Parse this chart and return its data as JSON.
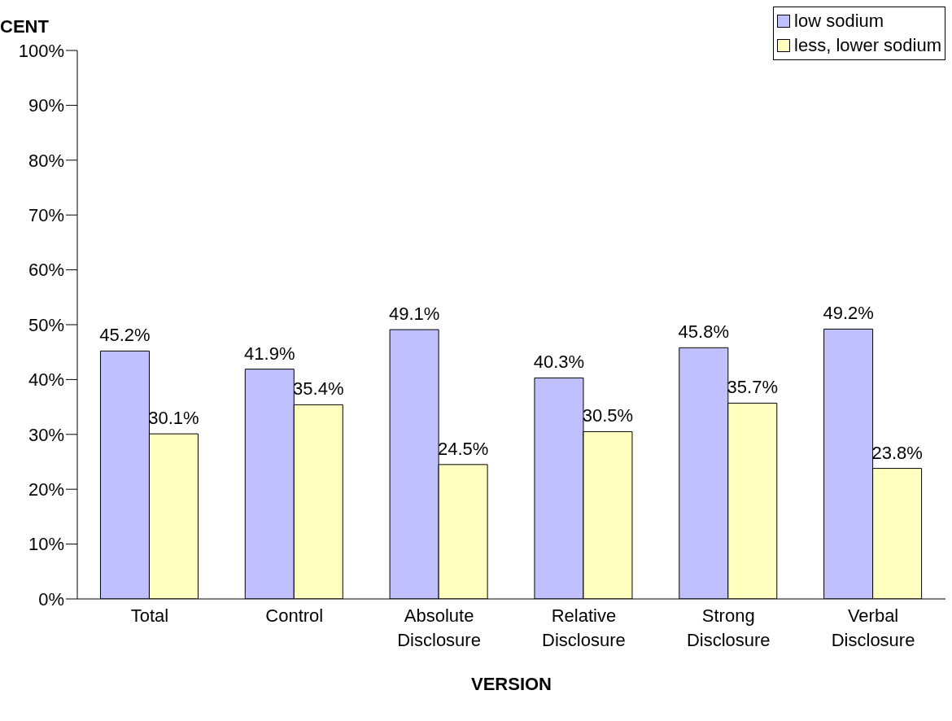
{
  "chart_data": {
    "type": "bar",
    "xlabel": "VERSION",
    "ylabel": "CENT",
    "categories": [
      "Total",
      "Control",
      "Absolute Disclosure",
      "Relative Disclosure",
      "Strong Disclosure",
      "Verbal Disclosure"
    ],
    "series": [
      {
        "name": "low sodium",
        "color": "#c0c0ff",
        "values": [
          45.2,
          41.9,
          49.1,
          40.3,
          45.8,
          49.2
        ]
      },
      {
        "name": "less, lower sodium",
        "color": "#ffffc0",
        "values": [
          30.1,
          35.4,
          24.5,
          30.5,
          35.7,
          23.8
        ]
      }
    ],
    "value_labels": [
      [
        "45.2%",
        "41.9%",
        "49.1%",
        "40.3%",
        "45.8%",
        "49.2%"
      ],
      [
        "30.1%",
        "35.4%",
        "24.5%",
        "30.5%",
        "35.7%",
        "23.8%"
      ]
    ],
    "ylim": [
      0,
      100
    ],
    "yticks": [
      {
        "value": 0,
        "label": "0%"
      },
      {
        "value": 10,
        "label": "10%"
      },
      {
        "value": 20,
        "label": "20%"
      },
      {
        "value": 30,
        "label": "30%"
      },
      {
        "value": 40,
        "label": "40%"
      },
      {
        "value": 50,
        "label": "50%"
      },
      {
        "value": 60,
        "label": "60%"
      },
      {
        "value": 70,
        "label": "70%"
      },
      {
        "value": 80,
        "label": "80%"
      },
      {
        "value": 90,
        "label": "90%"
      },
      {
        "value": 100,
        "label": "100%"
      }
    ],
    "grid": false,
    "legend": "top right"
  }
}
